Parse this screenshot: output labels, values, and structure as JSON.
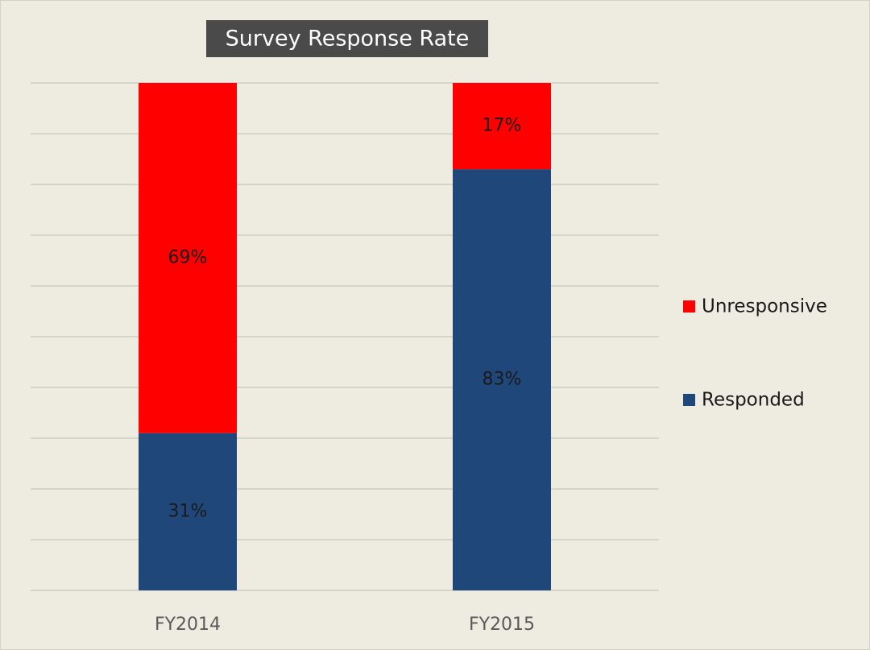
{
  "chart_data": {
    "type": "stacked_bar",
    "title": "Survey Response Rate",
    "categories": [
      "FY2014",
      "FY2015"
    ],
    "series": [
      {
        "name": "Responded",
        "color": "#1f477a",
        "values": [
          31,
          83
        ],
        "value_labels": [
          "31%",
          "83%"
        ]
      },
      {
        "name": "Unresponsive",
        "color": "#ff0000",
        "values": [
          69,
          17
        ],
        "value_labels": [
          "69%",
          "17%"
        ]
      }
    ],
    "ylim": [
      0,
      100
    ],
    "yticks": [
      0,
      10,
      20,
      30,
      40,
      50,
      60,
      70,
      80,
      90,
      100
    ],
    "grid": true,
    "legend": "right"
  }
}
